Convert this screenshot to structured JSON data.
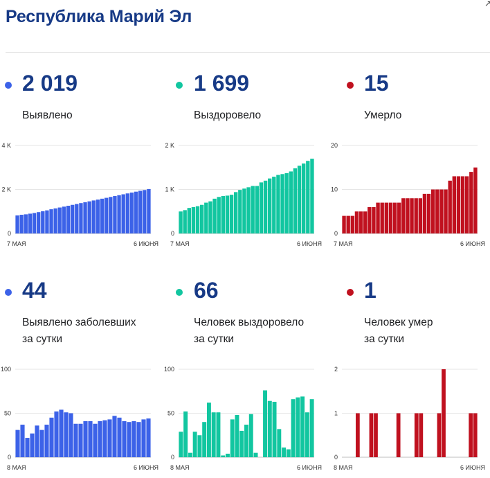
{
  "header": {
    "title": "Республика Марий Эл"
  },
  "stats": [
    {
      "value": "2 019",
      "label": "Выявлено",
      "color": "#3c62e8"
    },
    {
      "value": "1 699",
      "label": "Выздоровело",
      "color": "#12c6a0"
    },
    {
      "value": "15",
      "label": "Умерло",
      "color": "#c0111f"
    },
    {
      "value": "44",
      "label": "Выявлено заболевших\nза сутки",
      "color": "#3c62e8"
    },
    {
      "value": "66",
      "label": "Человек выздоровело\nза сутки",
      "color": "#12c6a0"
    },
    {
      "value": "1",
      "label": "Человек умер\nза сутки",
      "color": "#c0111f"
    }
  ],
  "chart_data": [
    {
      "type": "bar",
      "title": "Выявлено",
      "color": "#3c62e8",
      "ylim": [
        0,
        4000
      ],
      "yticks": [
        0,
        2000,
        4000
      ],
      "yticklabels": [
        "0",
        "2 K",
        "4 K"
      ],
      "xticklabels": [
        "7 МАЯ",
        "6 ИЮНЯ"
      ],
      "values": [
        820,
        850,
        870,
        900,
        930,
        970,
        1010,
        1050,
        1100,
        1140,
        1180,
        1220,
        1260,
        1300,
        1340,
        1380,
        1420,
        1460,
        1500,
        1540,
        1580,
        1620,
        1660,
        1700,
        1740,
        1780,
        1820,
        1860,
        1900,
        1940,
        1975,
        2019
      ]
    },
    {
      "type": "bar",
      "title": "Выздоровело",
      "color": "#12c6a0",
      "ylim": [
        0,
        2000
      ],
      "yticks": [
        0,
        1000,
        2000
      ],
      "yticklabels": [
        "0",
        "1 K",
        "2 K"
      ],
      "xticklabels": [
        "7 МАЯ",
        "6 ИЮНЯ"
      ],
      "values": [
        500,
        530,
        580,
        600,
        620,
        650,
        700,
        730,
        790,
        830,
        850,
        860,
        880,
        940,
        990,
        1020,
        1050,
        1080,
        1080,
        1160,
        1200,
        1250,
        1290,
        1330,
        1350,
        1370,
        1410,
        1480,
        1540,
        1590,
        1650,
        1699
      ]
    },
    {
      "type": "bar",
      "title": "Умерло",
      "color": "#c0111f",
      "ylim": [
        0,
        20
      ],
      "yticks": [
        0,
        10,
        20
      ],
      "yticklabels": [
        "0",
        "10",
        "20"
      ],
      "xticklabels": [
        "7 МАЯ",
        "6 ИЮНЯ"
      ],
      "values": [
        4,
        4,
        4,
        5,
        5,
        5,
        6,
        6,
        7,
        7,
        7,
        7,
        7,
        7,
        8,
        8,
        8,
        8,
        8,
        9,
        9,
        10,
        10,
        10,
        10,
        12,
        13,
        13,
        13,
        13,
        14,
        15
      ]
    },
    {
      "type": "bar",
      "title": "Выявлено заболевших за сутки",
      "color": "#3c62e8",
      "ylim": [
        0,
        100
      ],
      "yticks": [
        0,
        50,
        100
      ],
      "yticklabels": [
        "0",
        "50",
        "100"
      ],
      "xticklabels": [
        "8 МАЯ",
        "6 ИЮНЯ"
      ],
      "values": [
        31,
        37,
        22,
        27,
        36,
        31,
        37,
        45,
        52,
        54,
        51,
        50,
        38,
        38,
        41,
        41,
        38,
        41,
        42,
        43,
        47,
        45,
        41,
        40,
        41,
        40,
        43,
        44
      ]
    },
    {
      "type": "bar",
      "title": "Человек выздоровело за сутки",
      "color": "#12c6a0",
      "ylim": [
        0,
        100
      ],
      "yticks": [
        0,
        50,
        100
      ],
      "yticklabels": [
        "0",
        "50",
        "100"
      ],
      "xticklabels": [
        "8 МАЯ",
        "6 ИЮНЯ"
      ],
      "values": [
        29,
        52,
        5,
        29,
        25,
        40,
        62,
        51,
        51,
        2,
        4,
        43,
        48,
        30,
        37,
        49,
        5,
        0,
        76,
        64,
        63,
        32,
        11,
        9,
        66,
        68,
        69,
        51,
        66
      ]
    },
    {
      "type": "bar",
      "title": "Человек умер за сутки",
      "color": "#c0111f",
      "ylim": [
        0,
        2
      ],
      "yticks": [
        0,
        1,
        2
      ],
      "yticklabels": [
        "0",
        "1",
        "2"
      ],
      "xticklabels": [
        "8 МАЯ",
        "6 ИЮНЯ"
      ],
      "values": [
        0,
        0,
        0,
        1,
        0,
        0,
        1,
        1,
        0,
        0,
        0,
        0,
        1,
        0,
        0,
        0,
        1,
        1,
        0,
        0,
        0,
        1,
        2,
        0,
        0,
        0,
        0,
        0,
        1,
        1
      ]
    }
  ]
}
